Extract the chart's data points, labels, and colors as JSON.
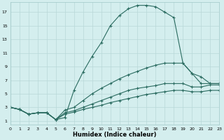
{
  "xlabel": "Humidex (Indice chaleur)",
  "ylabel": "",
  "bg_color": "#d4eeee",
  "line_color": "#2a6b60",
  "grid_color": "#b8d8d8",
  "lines": [
    {
      "x": [
        0,
        1,
        2,
        3,
        4,
        5,
        6,
        7,
        8,
        9,
        10,
        11,
        12,
        13,
        14,
        15,
        16,
        17,
        18,
        19,
        20,
        21,
        22,
        23
      ],
      "y": [
        3,
        2.7,
        2,
        2.2,
        2.2,
        1.2,
        1.5,
        5.5,
        8.2,
        10.5,
        12.5,
        15,
        16.5,
        17.5,
        18,
        18,
        17.8,
        17,
        16.2,
        9.5,
        8,
        6.5,
        6.5,
        6.5
      ]
    },
    {
      "x": [
        0,
        1,
        2,
        3,
        4,
        5,
        6,
        7,
        8,
        9,
        10,
        11,
        12,
        13,
        14,
        15,
        16,
        17,
        18,
        19,
        20,
        21,
        22,
        23
      ],
      "y": [
        3,
        2.7,
        2,
        2.2,
        2.2,
        1.2,
        2.6,
        3.0,
        4.0,
        5.0,
        5.8,
        6.5,
        7.2,
        7.8,
        8.3,
        8.8,
        9.2,
        9.5,
        9.5,
        9.5,
        8.0,
        7.5,
        6.5,
        6.5
      ]
    },
    {
      "x": [
        0,
        1,
        2,
        3,
        4,
        5,
        6,
        7,
        8,
        9,
        10,
        11,
        12,
        13,
        14,
        15,
        16,
        17,
        18,
        19,
        20,
        21,
        22,
        23
      ],
      "y": [
        3,
        2.7,
        2,
        2.2,
        2.2,
        1.2,
        2.2,
        2.5,
        3.0,
        3.5,
        4.0,
        4.5,
        5.0,
        5.5,
        5.8,
        6.0,
        6.2,
        6.5,
        6.5,
        6.5,
        6.0,
        6.0,
        6.3,
        6.3
      ]
    },
    {
      "x": [
        0,
        1,
        2,
        3,
        4,
        5,
        6,
        7,
        8,
        9,
        10,
        11,
        12,
        13,
        14,
        15,
        16,
        17,
        18,
        19,
        20,
        21,
        22,
        23
      ],
      "y": [
        3,
        2.7,
        2,
        2.2,
        2.2,
        1.2,
        2.0,
        2.3,
        2.7,
        3.0,
        3.3,
        3.7,
        4.0,
        4.3,
        4.6,
        4.9,
        5.1,
        5.3,
        5.5,
        5.5,
        5.3,
        5.3,
        5.5,
        5.5
      ]
    }
  ],
  "xlim": [
    0,
    23
  ],
  "ylim": [
    0.5,
    18.5
  ],
  "yticks": [
    1,
    3,
    5,
    7,
    9,
    11,
    13,
    15,
    17
  ],
  "xticks": [
    0,
    1,
    2,
    3,
    4,
    5,
    6,
    7,
    8,
    9,
    10,
    11,
    12,
    13,
    14,
    15,
    16,
    17,
    18,
    19,
    20,
    21,
    22,
    23
  ]
}
